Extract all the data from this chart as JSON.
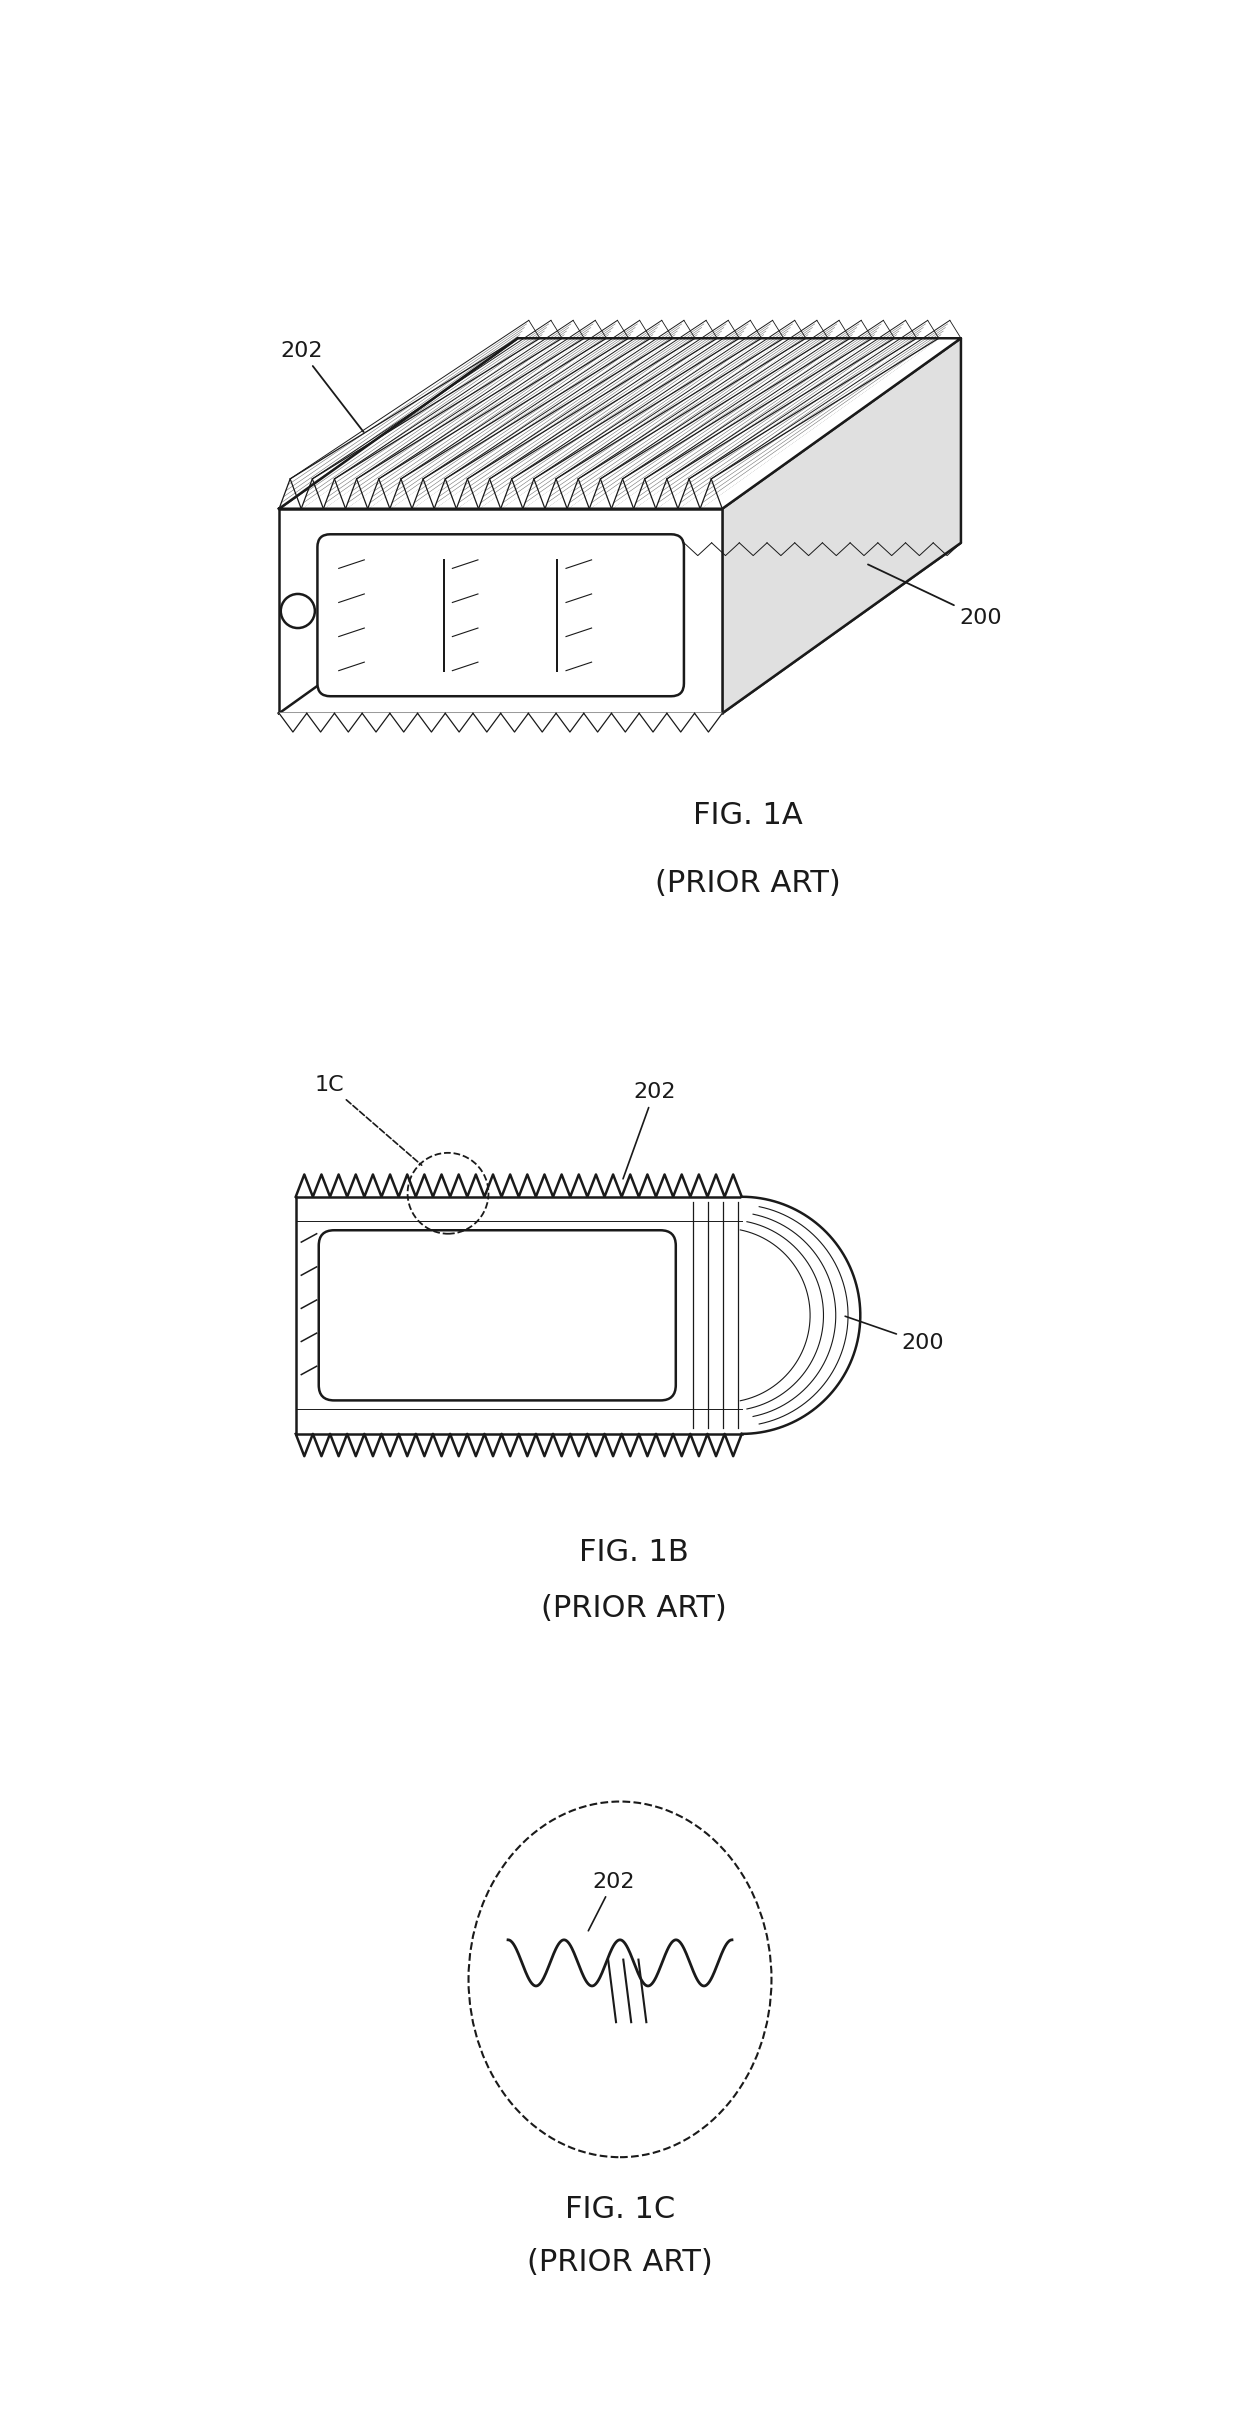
{
  "bg_color": "#ffffff",
  "line_color": "#1a1a1a",
  "fig1a_title": "FIG. 1A",
  "fig1a_subtitle": "(PRIOR ART)",
  "fig1b_title": "FIG. 1B",
  "fig1b_subtitle": "(PRIOR ART)",
  "fig1c_title": "FIG. 1C",
  "fig1c_subtitle": "(PRIOR ART)",
  "label_200": "200",
  "label_202": "202",
  "label_1C": "1C",
  "font_size_label": 16,
  "font_size_title": 22,
  "font_size_sub": 22
}
